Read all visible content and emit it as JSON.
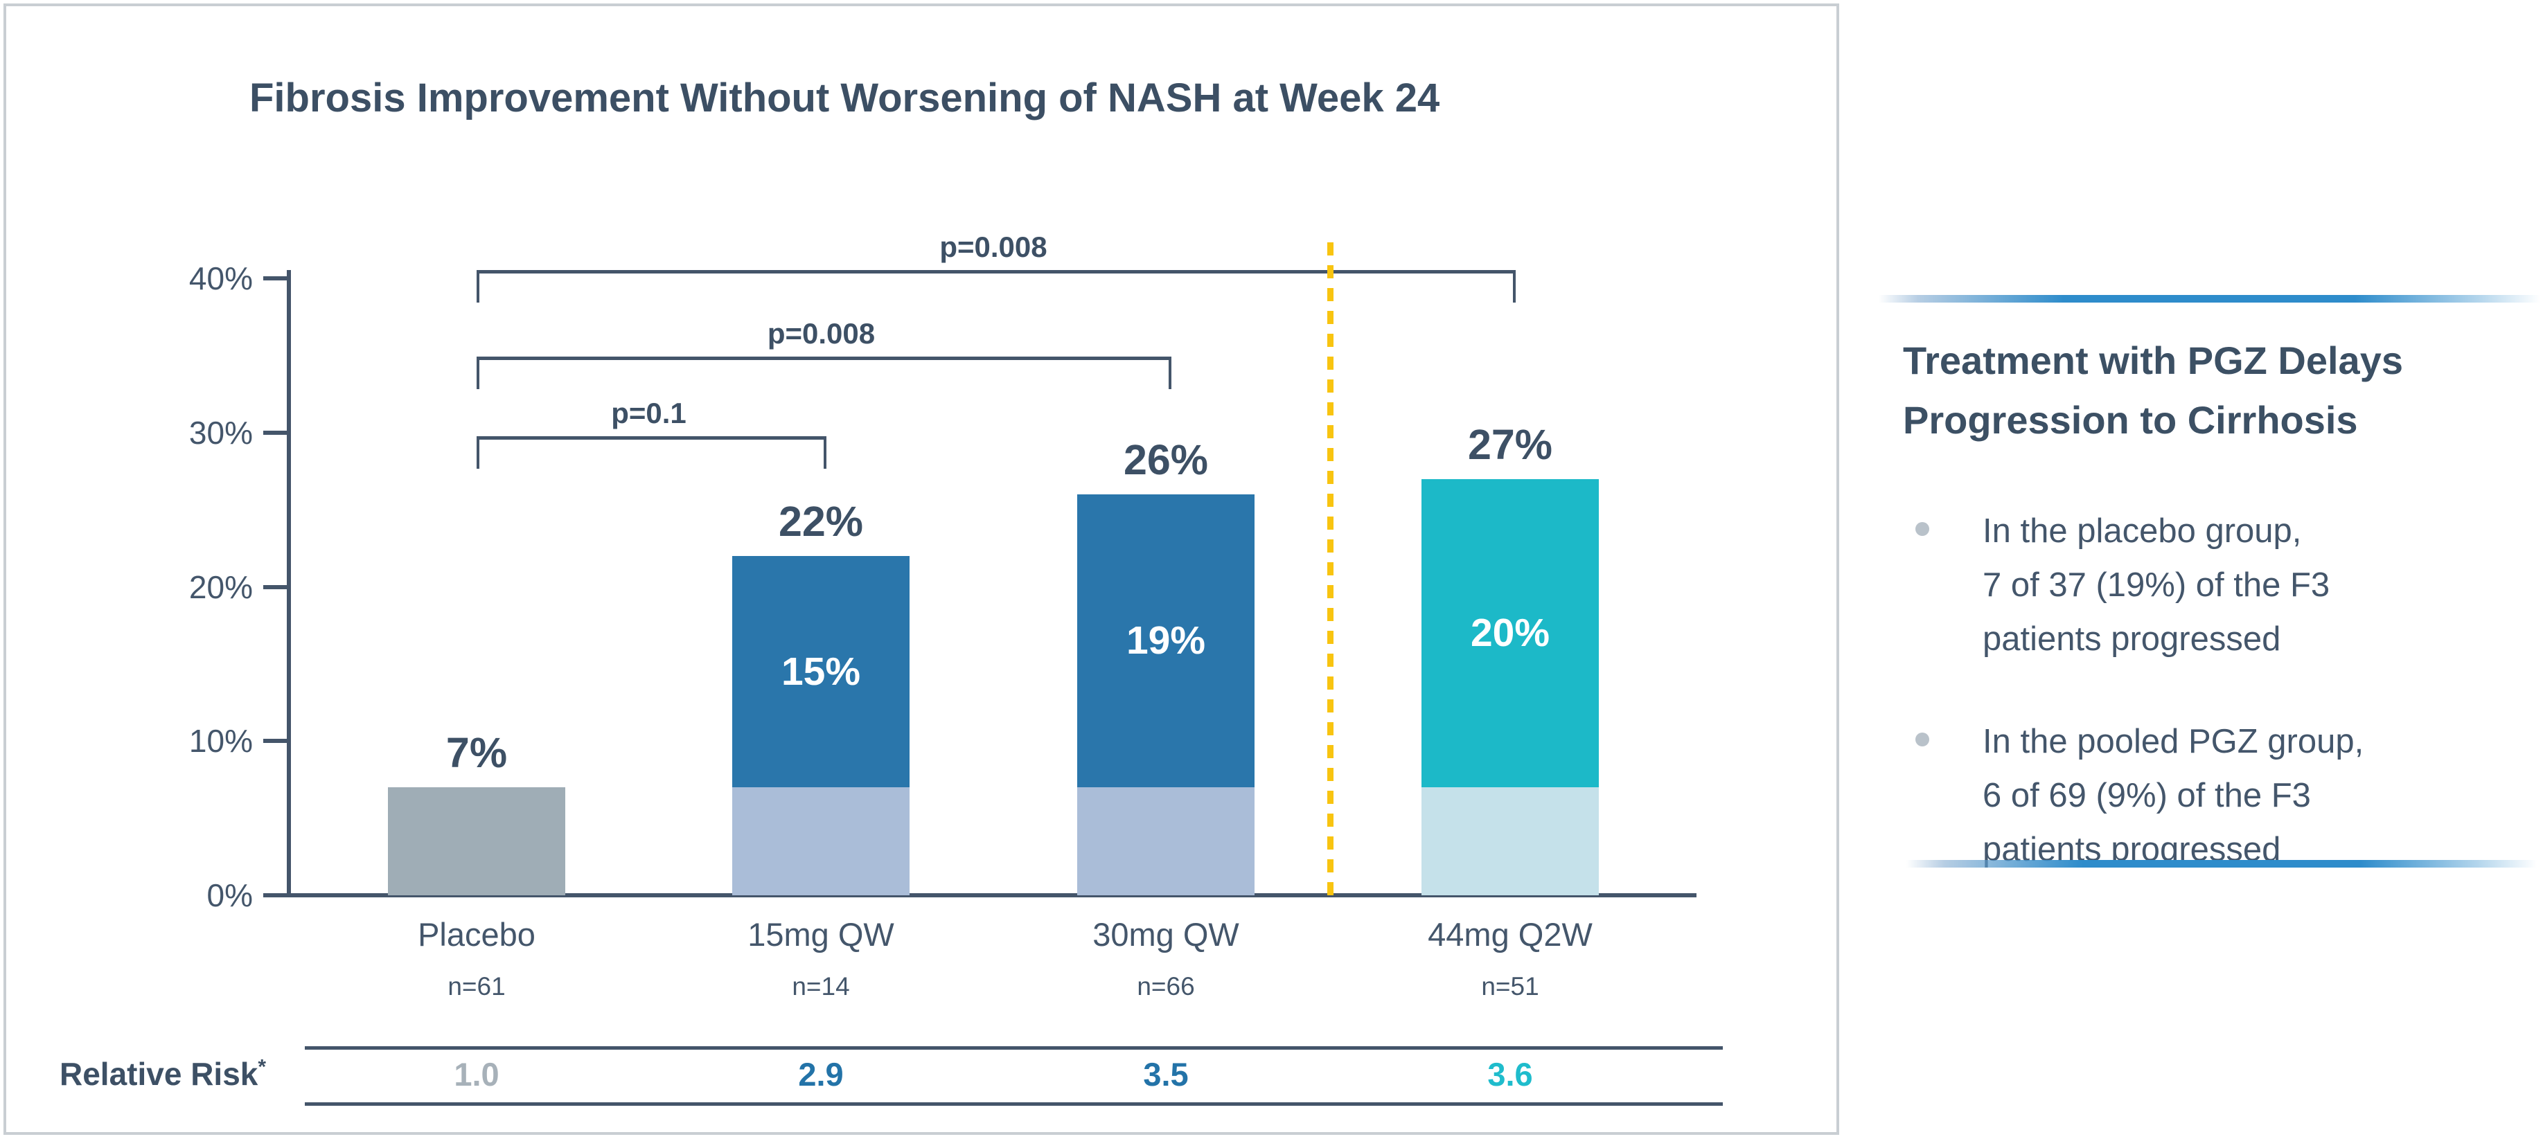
{
  "title": "Fibrosis Improvement Without Worsening of NASH at Week 24",
  "chart_data": {
    "type": "bar",
    "stacked": true,
    "title": "Fibrosis Improvement Without Worsening of NASH at Week 24",
    "xlabel": "",
    "ylabel": "",
    "ylim": [
      0,
      40
    ],
    "grid": false,
    "y_axis": {
      "unit": "%",
      "ticks": [
        "0%",
        "10%",
        "20%",
        "30%",
        "40%"
      ]
    },
    "categories": [
      "Placebo",
      "15mg QW",
      "30mg QW",
      "44mg Q2W"
    ],
    "n_labels": [
      "n=61",
      "n=14",
      "n=66",
      "n=51"
    ],
    "groups": [
      {
        "label": "Placebo",
        "n": "n=61",
        "total": 7,
        "total_label": "7%",
        "segments": [
          {
            "value": 7,
            "color": "#9fadb6",
            "label": ""
          }
        ],
        "relative_risk": "1.0",
        "rr_color": "#a7b1b9"
      },
      {
        "label": "15mg QW",
        "n": "n=14",
        "total": 22,
        "total_label": "22%",
        "segments": [
          {
            "value": 7,
            "color": "#aabdd8",
            "label": ""
          },
          {
            "value": 15,
            "color": "#2a76ab",
            "label": "15%"
          }
        ],
        "relative_risk": "2.9",
        "rr_color": "#2373a8"
      },
      {
        "label": "30mg QW",
        "n": "n=66",
        "total": 26,
        "total_label": "26%",
        "segments": [
          {
            "value": 7,
            "color": "#aabdd8",
            "label": ""
          },
          {
            "value": 19,
            "color": "#2a76ab",
            "label": "19%"
          }
        ],
        "relative_risk": "3.5",
        "rr_color": "#2373a8"
      },
      {
        "label": "44mg Q2W",
        "n": "n=51",
        "total": 27,
        "total_label": "27%",
        "segments": [
          {
            "value": 7,
            "color": "#c5e1ea",
            "label": ""
          },
          {
            "value": 20,
            "color": "#1cb9c8",
            "label": "20%"
          }
        ],
        "relative_risk": "3.6",
        "rr_color": "#1fbccc"
      }
    ],
    "significance_brackets": [
      {
        "from": 0,
        "to": 1,
        "label": "p=0.1"
      },
      {
        "from": 0,
        "to": 2,
        "label": "p=0.008"
      },
      {
        "from": 0,
        "to": 3,
        "label": "p=0.008"
      }
    ],
    "separator": {
      "style": "dashed",
      "color": "#f8c410",
      "between": [
        "30mg QW",
        "44mg Q2W"
      ]
    },
    "row_header": "Relative Risk",
    "row_header_superscript": "*",
    "legend_position": "none"
  },
  "side_panel": {
    "accent_color": "#2e8ccb",
    "heading_lines": [
      "Treatment with PGZ Delays",
      "Progression to Cirrhosis"
    ],
    "bullets": [
      {
        "lines": [
          "In the placebo group,",
          "7 of 37 (19%) of the F3",
          "patients progressed"
        ]
      },
      {
        "lines": [
          "In the pooled PGZ group,",
          "6 of 69 (9%) of the F3",
          "patients progressed"
        ]
      }
    ]
  }
}
